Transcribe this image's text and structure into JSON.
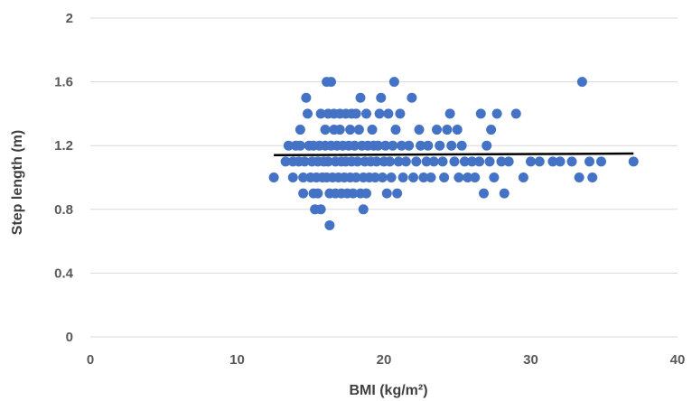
{
  "chart_data": {
    "type": "scatter",
    "title": "",
    "xlabel": "BMI (kg/m²)",
    "ylabel": "Step length (m)",
    "xlim": [
      0,
      40
    ],
    "ylim": [
      0,
      2
    ],
    "xticks": [
      0,
      10,
      20,
      30,
      40
    ],
    "yticks": [
      0,
      0.4,
      0.8,
      1.2,
      1.6,
      2
    ],
    "yticklabels": [
      "0",
      "0.4",
      "0.8",
      "1.2",
      "1.6",
      "2"
    ],
    "grid": "horizontal",
    "colors": {
      "points": "#4472C4",
      "trendline": "#000000",
      "grid": "#d9d9d9"
    },
    "trendline": {
      "x": [
        12.5,
        37
      ],
      "y": [
        1.14,
        1.15
      ]
    },
    "series": [
      {
        "points": [
          [
            12.5,
            1.0
          ],
          [
            13.3,
            1.1
          ],
          [
            13.5,
            1.2
          ],
          [
            13.8,
            1.1
          ],
          [
            13.8,
            1.0
          ],
          [
            14.0,
            1.2
          ],
          [
            14.2,
            1.1
          ],
          [
            14.3,
            1.2
          ],
          [
            14.3,
            1.3
          ],
          [
            14.5,
            0.9
          ],
          [
            14.5,
            1.0
          ],
          [
            14.6,
            1.1
          ],
          [
            14.7,
            1.5
          ],
          [
            14.8,
            1.4
          ],
          [
            14.9,
            1.2
          ],
          [
            15.0,
            1.0
          ],
          [
            15.1,
            1.1
          ],
          [
            15.2,
            0.9
          ],
          [
            15.2,
            1.2
          ],
          [
            15.3,
            0.8
          ],
          [
            15.4,
            1.0
          ],
          [
            15.5,
            1.1
          ],
          [
            15.5,
            0.9
          ],
          [
            15.6,
            1.2
          ],
          [
            15.7,
            0.8
          ],
          [
            15.7,
            1.4
          ],
          [
            15.8,
            1.0
          ],
          [
            15.9,
            1.1
          ],
          [
            16.0,
            1.3
          ],
          [
            16.0,
            1.2
          ],
          [
            16.1,
            1.0
          ],
          [
            16.1,
            1.6
          ],
          [
            16.2,
            1.4
          ],
          [
            16.2,
            1.1
          ],
          [
            16.3,
            0.7
          ],
          [
            16.3,
            0.9
          ],
          [
            16.4,
            1.2
          ],
          [
            16.4,
            1.6
          ],
          [
            16.5,
            1.0
          ],
          [
            16.6,
            1.3
          ],
          [
            16.6,
            1.4
          ],
          [
            16.7,
            1.1
          ],
          [
            16.7,
            0.9
          ],
          [
            16.8,
            1.2
          ],
          [
            16.9,
            1.0
          ],
          [
            17.0,
            1.4
          ],
          [
            17.0,
            1.3
          ],
          [
            17.1,
            1.1
          ],
          [
            17.1,
            0.9
          ],
          [
            17.2,
            1.2
          ],
          [
            17.3,
            1.0
          ],
          [
            17.4,
            1.4
          ],
          [
            17.4,
            1.1
          ],
          [
            17.5,
            0.9
          ],
          [
            17.6,
            1.2
          ],
          [
            17.7,
            1.3
          ],
          [
            17.7,
            1.0
          ],
          [
            17.8,
            1.4
          ],
          [
            17.8,
            1.1
          ],
          [
            17.9,
            0.9
          ],
          [
            18.0,
            1.2
          ],
          [
            18.1,
            1.0
          ],
          [
            18.1,
            1.4
          ],
          [
            18.2,
            1.1
          ],
          [
            18.3,
            1.3
          ],
          [
            18.4,
            1.5
          ],
          [
            18.4,
            0.9
          ],
          [
            18.5,
            1.2
          ],
          [
            18.6,
            1.0
          ],
          [
            18.6,
            0.8
          ],
          [
            18.7,
            1.1
          ],
          [
            18.8,
            1.4
          ],
          [
            18.8,
            0.9
          ],
          [
            18.9,
            1.2
          ],
          [
            19.0,
            1.0
          ],
          [
            19.1,
            1.1
          ],
          [
            19.2,
            1.3
          ],
          [
            19.3,
            1.2
          ],
          [
            19.4,
            1.0
          ],
          [
            19.5,
            1.1
          ],
          [
            19.6,
            1.2
          ],
          [
            19.7,
            1.4
          ],
          [
            19.8,
            1.5
          ],
          [
            19.9,
            1.0
          ],
          [
            20.0,
            1.1
          ],
          [
            20.1,
            1.2
          ],
          [
            20.2,
            0.9
          ],
          [
            20.3,
            1.4
          ],
          [
            20.4,
            1.1
          ],
          [
            20.5,
            1.0
          ],
          [
            20.6,
            1.2
          ],
          [
            20.7,
            1.6
          ],
          [
            20.8,
            1.3
          ],
          [
            20.9,
            0.9
          ],
          [
            21.0,
            1.1
          ],
          [
            21.1,
            1.4
          ],
          [
            21.2,
            1.2
          ],
          [
            21.3,
            1.0
          ],
          [
            21.5,
            1.1
          ],
          [
            21.7,
            1.2
          ],
          [
            21.9,
            1.5
          ],
          [
            22.0,
            1.0
          ],
          [
            22.2,
            1.1
          ],
          [
            22.4,
            1.3
          ],
          [
            22.5,
            1.2
          ],
          [
            22.7,
            1.0
          ],
          [
            22.9,
            1.1
          ],
          [
            23.0,
            1.2
          ],
          [
            23.2,
            1.0
          ],
          [
            23.4,
            1.1
          ],
          [
            23.6,
            1.3
          ],
          [
            23.8,
            1.2
          ],
          [
            24.0,
            1.1
          ],
          [
            24.1,
            1.0
          ],
          [
            24.3,
            1.3
          ],
          [
            24.5,
            1.4
          ],
          [
            24.6,
            1.2
          ],
          [
            24.8,
            1.1
          ],
          [
            25.0,
            1.3
          ],
          [
            25.1,
            1.0
          ],
          [
            25.3,
            1.2
          ],
          [
            25.5,
            1.1
          ],
          [
            25.7,
            1.0
          ],
          [
            26.0,
            1.1
          ],
          [
            26.2,
            1.0
          ],
          [
            26.5,
            1.1
          ],
          [
            26.6,
            1.4
          ],
          [
            26.8,
            0.9
          ],
          [
            27.0,
            1.2
          ],
          [
            27.2,
            1.1
          ],
          [
            27.3,
            1.3
          ],
          [
            27.5,
            1.0
          ],
          [
            27.7,
            1.4
          ],
          [
            28.0,
            1.1
          ],
          [
            28.2,
            0.9
          ],
          [
            28.5,
            1.1
          ],
          [
            29.0,
            1.4
          ],
          [
            29.5,
            1.0
          ],
          [
            30.0,
            1.1
          ],
          [
            30.6,
            1.1
          ],
          [
            31.5,
            1.1
          ],
          [
            32.0,
            1.1
          ],
          [
            32.8,
            1.1
          ],
          [
            33.3,
            1.0
          ],
          [
            33.5,
            1.6
          ],
          [
            34.0,
            1.1
          ],
          [
            34.2,
            1.0
          ],
          [
            34.8,
            1.1
          ],
          [
            37.0,
            1.1
          ]
        ]
      }
    ]
  }
}
